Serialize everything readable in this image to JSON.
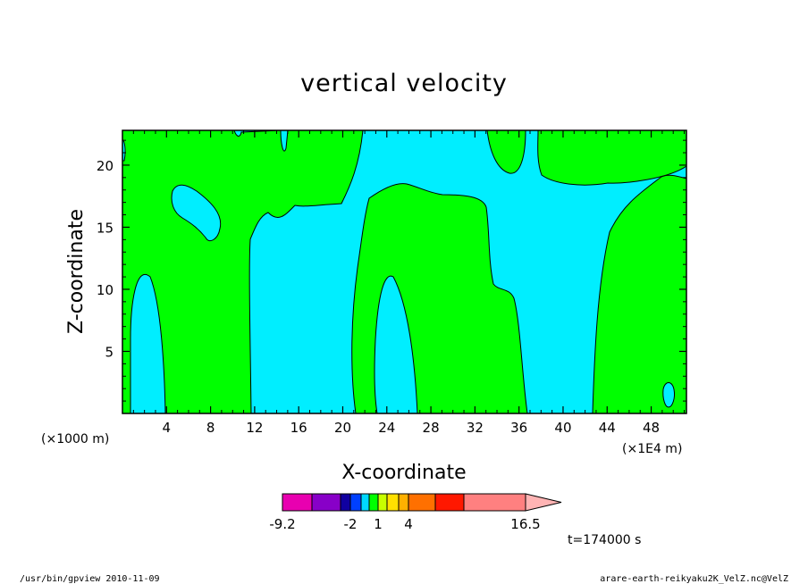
{
  "chart_data": {
    "type": "contour",
    "title": "vertical velocity",
    "xlabel": "X-coordinate",
    "ylabel": "Z-coordinate",
    "x_scale_note": "(×1000 m)",
    "x_scale_note_right": "(×1E4 m)",
    "x_ticks": [
      "4",
      "8",
      "12",
      "16",
      "20",
      "24",
      "28",
      "32",
      "36",
      "40",
      "44",
      "48"
    ],
    "x_tick_values": [
      4,
      8,
      12,
      16,
      20,
      24,
      28,
      32,
      36,
      40,
      44,
      48
    ],
    "y_ticks": [
      "5",
      "10",
      "15",
      "20"
    ],
    "y_tick_values": [
      5,
      10,
      15,
      20
    ],
    "xlim": [
      0,
      51.2
    ],
    "ylim": [
      0,
      22.8
    ],
    "fill_colors": {
      "positive": "#00ff00",
      "near_zero": "#00eeff"
    },
    "colorbar": {
      "tick_labels": [
        "-9.2",
        "-2",
        "1",
        "4",
        "16.5"
      ],
      "segments": [
        "#e800b0",
        "#8800c8",
        "#1000a0",
        "#0040ff",
        "#00d8ff",
        "#00ff00",
        "#c8ff00",
        "#ffe000",
        "#ffb000",
        "#ff7000",
        "#ff1800",
        "#ff8080"
      ],
      "arrow_color": "#ffb4b4"
    },
    "time_label": "t=174000 s"
  },
  "footer": {
    "left": "/usr/bin/gpview   2010-11-09",
    "right": "arare-earth-reikyaku2K_VelZ.nc@VelZ"
  }
}
